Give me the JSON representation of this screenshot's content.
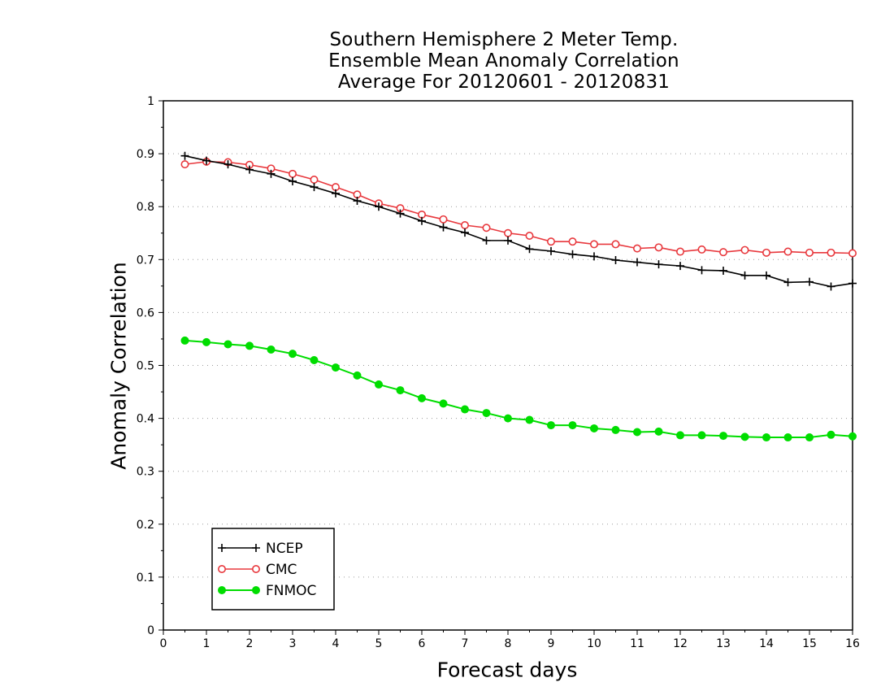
{
  "chart_data": {
    "type": "line",
    "title": [
      "Southern Hemisphere 2 Meter Temp.",
      "Ensemble Mean Anomaly Correlation",
      "Average For 20120601 - 20120831"
    ],
    "xlabel": "Forecast days",
    "ylabel": "Anomaly Correlation",
    "xlim": [
      0,
      16
    ],
    "ylim": [
      0,
      1
    ],
    "xticks": [
      "0",
      "1",
      "2",
      "3",
      "4",
      "5",
      "6",
      "7",
      "8",
      "9",
      "10",
      "11",
      "12",
      "13",
      "14",
      "15",
      "16"
    ],
    "yticks": [
      "0",
      "0.1",
      "0.2",
      "0.3",
      "0.4",
      "0.5",
      "0.6",
      "0.7",
      "0.8",
      "0.9",
      "1"
    ],
    "grid": "horizontal-dotted",
    "legend_position": "bottom-left",
    "x": [
      0.5,
      1,
      1.5,
      2,
      2.5,
      3,
      3.5,
      4,
      4.5,
      5,
      5.5,
      6,
      6.5,
      7,
      7.5,
      8,
      8.5,
      9,
      9.5,
      10,
      10.5,
      11,
      11.5,
      12,
      12.5,
      13,
      13.5,
      14,
      14.5,
      15,
      15.5,
      16
    ],
    "series": [
      {
        "name": "NCEP",
        "color": "#000000",
        "marker": "plus",
        "values": [
          0.896,
          0.887,
          0.88,
          0.87,
          0.862,
          0.848,
          0.837,
          0.825,
          0.811,
          0.8,
          0.787,
          0.773,
          0.761,
          0.751,
          0.736,
          0.736,
          0.72,
          0.716,
          0.71,
          0.706,
          0.699,
          0.695,
          0.691,
          0.688,
          0.68,
          0.679,
          0.67,
          0.67,
          0.657,
          0.658,
          0.649,
          0.655
        ]
      },
      {
        "name": "CMC",
        "color": "#e8383d",
        "marker": "open-circle",
        "values": [
          0.88,
          0.885,
          0.884,
          0.879,
          0.872,
          0.862,
          0.851,
          0.837,
          0.823,
          0.806,
          0.797,
          0.785,
          0.776,
          0.765,
          0.76,
          0.75,
          0.745,
          0.734,
          0.734,
          0.729,
          0.729,
          0.721,
          0.723,
          0.715,
          0.719,
          0.714,
          0.718,
          0.713,
          0.715,
          0.713,
          0.713,
          0.712
        ]
      },
      {
        "name": "FNMOC",
        "color": "#00dd00",
        "marker": "filled-circle",
        "values": [
          0.547,
          0.544,
          0.54,
          0.537,
          0.53,
          0.522,
          0.51,
          0.496,
          0.481,
          0.464,
          0.453,
          0.438,
          0.428,
          0.417,
          0.41,
          0.4,
          0.397,
          0.387,
          0.387,
          0.381,
          0.378,
          0.374,
          0.375,
          0.368,
          0.368,
          0.367,
          0.365,
          0.364,
          0.364,
          0.364,
          0.369,
          0.366
        ]
      }
    ]
  }
}
